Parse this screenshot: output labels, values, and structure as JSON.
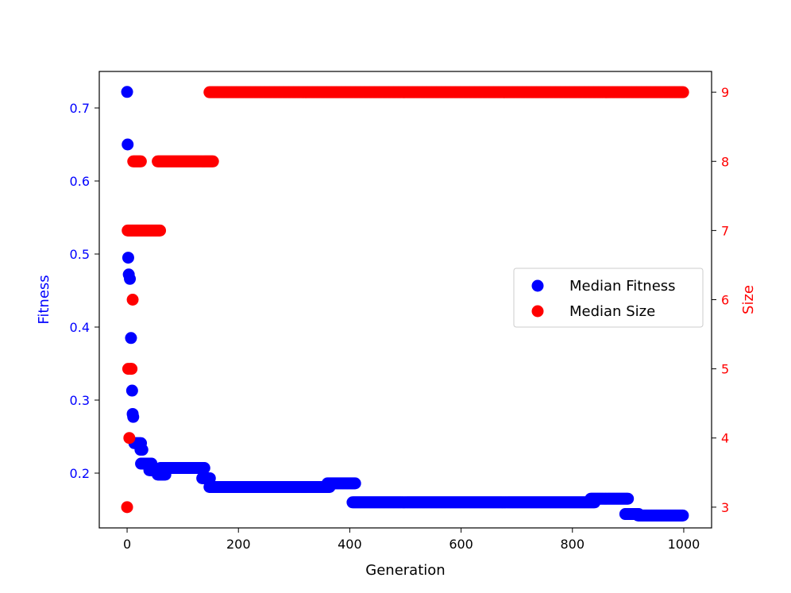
{
  "chart_data": {
    "type": "scatter",
    "title": "",
    "xlabel": "Generation",
    "ylabel_left": "Fitness",
    "ylabel_right": "Size",
    "xlim": [
      -50,
      1050
    ],
    "ylim_left": [
      0.125,
      0.75
    ],
    "ylim_right": [
      2.7,
      9.3
    ],
    "x_ticks": [
      0,
      200,
      400,
      600,
      800,
      1000
    ],
    "y_left_ticks": [
      0.2,
      0.3,
      0.4,
      0.5,
      0.6,
      0.7
    ],
    "y_left_tick_labels": [
      "0.2",
      "0.3",
      "0.4",
      "0.5",
      "0.6",
      "0.7"
    ],
    "y_right_ticks": [
      3,
      4,
      5,
      6,
      7,
      8,
      9
    ],
    "legend_position": "center-right",
    "left_axis_color": "#0000ff",
    "right_axis_color": "#ff0000",
    "series": [
      {
        "name": "Median Fitness",
        "axis": "left",
        "color": "#0000ff",
        "segments": [
          {
            "x": [
              0
            ],
            "y": 0.722
          },
          {
            "x": [
              1
            ],
            "y": 0.65
          },
          {
            "x": [
              2
            ],
            "y": 0.495
          },
          {
            "x": [
              3
            ],
            "y": 0.472
          },
          {
            "x": [
              5
            ],
            "y": 0.466
          },
          {
            "x": [
              7
            ],
            "y": 0.385
          },
          {
            "x": [
              9
            ],
            "y": 0.313
          },
          {
            "x": [
              10
            ],
            "y": 0.281
          },
          {
            "x": [
              11
            ],
            "y": 0.277
          },
          {
            "x": [
              13,
              25
            ],
            "y": 0.241
          },
          {
            "x": [
              24,
              28
            ],
            "y": 0.232
          },
          {
            "x": [
              25,
              45
            ],
            "y": 0.213
          },
          {
            "x": [
              40,
              55
            ],
            "y": 0.204
          },
          {
            "x": [
              55,
              70
            ],
            "y": 0.198
          },
          {
            "x": [
              60,
              140
            ],
            "y": 0.207
          },
          {
            "x": [
              135,
              150
            ],
            "y": 0.193
          },
          {
            "x": [
              148,
              365
            ],
            "y": 0.181
          },
          {
            "x": [
              360,
              410
            ],
            "y": 0.186
          },
          {
            "x": [
              405,
              840
            ],
            "y": 0.16
          },
          {
            "x": [
              833,
              900
            ],
            "y": 0.165
          },
          {
            "x": [
              895,
              920
            ],
            "y": 0.144
          },
          {
            "x": [
              918,
              1000
            ],
            "y": 0.142
          }
        ]
      },
      {
        "name": "Median Size",
        "axis": "right",
        "color": "#ff0000",
        "segments": [
          {
            "x": [
              0
            ],
            "y": 3
          },
          {
            "x": [
              2
            ],
            "y": 5
          },
          {
            "x": [
              4
            ],
            "y": 4
          },
          {
            "x": [
              6
            ],
            "y": 5
          },
          {
            "x": [
              8
            ],
            "y": 5
          },
          {
            "x": [
              10
            ],
            "y": 6
          },
          {
            "x": [
              1,
              60
            ],
            "y": 7
          },
          {
            "x": [
              11,
              25
            ],
            "y": 8
          },
          {
            "x": [
              55,
              155
            ],
            "y": 8
          },
          {
            "x": [
              148,
              1000
            ],
            "y": 9
          }
        ]
      }
    ]
  }
}
